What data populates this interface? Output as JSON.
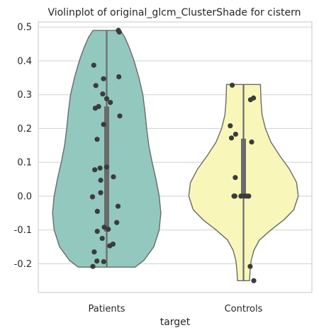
{
  "chart_data": {
    "type": "violin",
    "title": "Violinplot of original_glcm_ClusterShade for cistern",
    "xlabel": "target",
    "ylabel": "",
    "ylim": [
      -0.285,
      0.515
    ],
    "yticks": [
      -0.2,
      -0.1,
      0.0,
      0.1,
      0.2,
      0.3,
      0.4,
      0.5
    ],
    "ytick_labels": [
      "-0.2",
      "-0.1",
      "0.0",
      "0.1",
      "0.2",
      "0.3",
      "0.4",
      "0.5"
    ],
    "grid": true,
    "categories": [
      "Patients",
      "Controls"
    ],
    "series": [
      {
        "category": "Patients",
        "color": "#93c8bf",
        "min": -0.21,
        "max": 0.49,
        "q1": -0.105,
        "q3": 0.265,
        "points": [
          0.49,
          0.485,
          0.387,
          0.347,
          0.353,
          0.327,
          0.302,
          0.288,
          0.277,
          0.265,
          0.26,
          0.237,
          0.212,
          0.168,
          0.086,
          0.083,
          0.078,
          0.057,
          0.047,
          0.01,
          -0.002,
          -0.03,
          -0.045,
          -0.078,
          -0.092,
          -0.104,
          -0.098,
          -0.125,
          -0.142,
          -0.147,
          -0.165,
          -0.192,
          -0.194,
          -0.208
        ],
        "density": [
          [
            -0.21,
            0.52
          ],
          [
            -0.19,
            0.68
          ],
          [
            -0.15,
            0.86
          ],
          [
            -0.1,
            0.96
          ],
          [
            -0.05,
            0.99
          ],
          [
            0.0,
            0.96
          ],
          [
            0.05,
            0.9
          ],
          [
            0.1,
            0.83
          ],
          [
            0.15,
            0.77
          ],
          [
            0.2,
            0.73
          ],
          [
            0.25,
            0.7
          ],
          [
            0.3,
            0.66
          ],
          [
            0.35,
            0.59
          ],
          [
            0.4,
            0.5
          ],
          [
            0.44,
            0.41
          ],
          [
            0.47,
            0.33
          ],
          [
            0.49,
            0.25
          ]
        ]
      },
      {
        "category": "Controls",
        "color": "#f8f7b9",
        "min": -0.25,
        "max": 0.33,
        "q1": 0.0,
        "q3": 0.17,
        "points": [
          0.328,
          0.29,
          0.285,
          0.208,
          0.183,
          0.172,
          0.16,
          0.055,
          0.0,
          0.0,
          0.0,
          0.0,
          0.0,
          0.0,
          0.0,
          -0.208,
          -0.25
        ],
        "density": [
          [
            -0.25,
            0.11
          ],
          [
            -0.22,
            0.12
          ],
          [
            -0.19,
            0.14
          ],
          [
            -0.16,
            0.19
          ],
          [
            -0.13,
            0.29
          ],
          [
            -0.1,
            0.5
          ],
          [
            -0.07,
            0.74
          ],
          [
            -0.04,
            0.92
          ],
          [
            0.0,
            1.0
          ],
          [
            0.04,
            0.97
          ],
          [
            0.08,
            0.84
          ],
          [
            0.12,
            0.66
          ],
          [
            0.16,
            0.5
          ],
          [
            0.2,
            0.4
          ],
          [
            0.24,
            0.34
          ],
          [
            0.28,
            0.32
          ],
          [
            0.33,
            0.31
          ]
        ]
      }
    ]
  }
}
